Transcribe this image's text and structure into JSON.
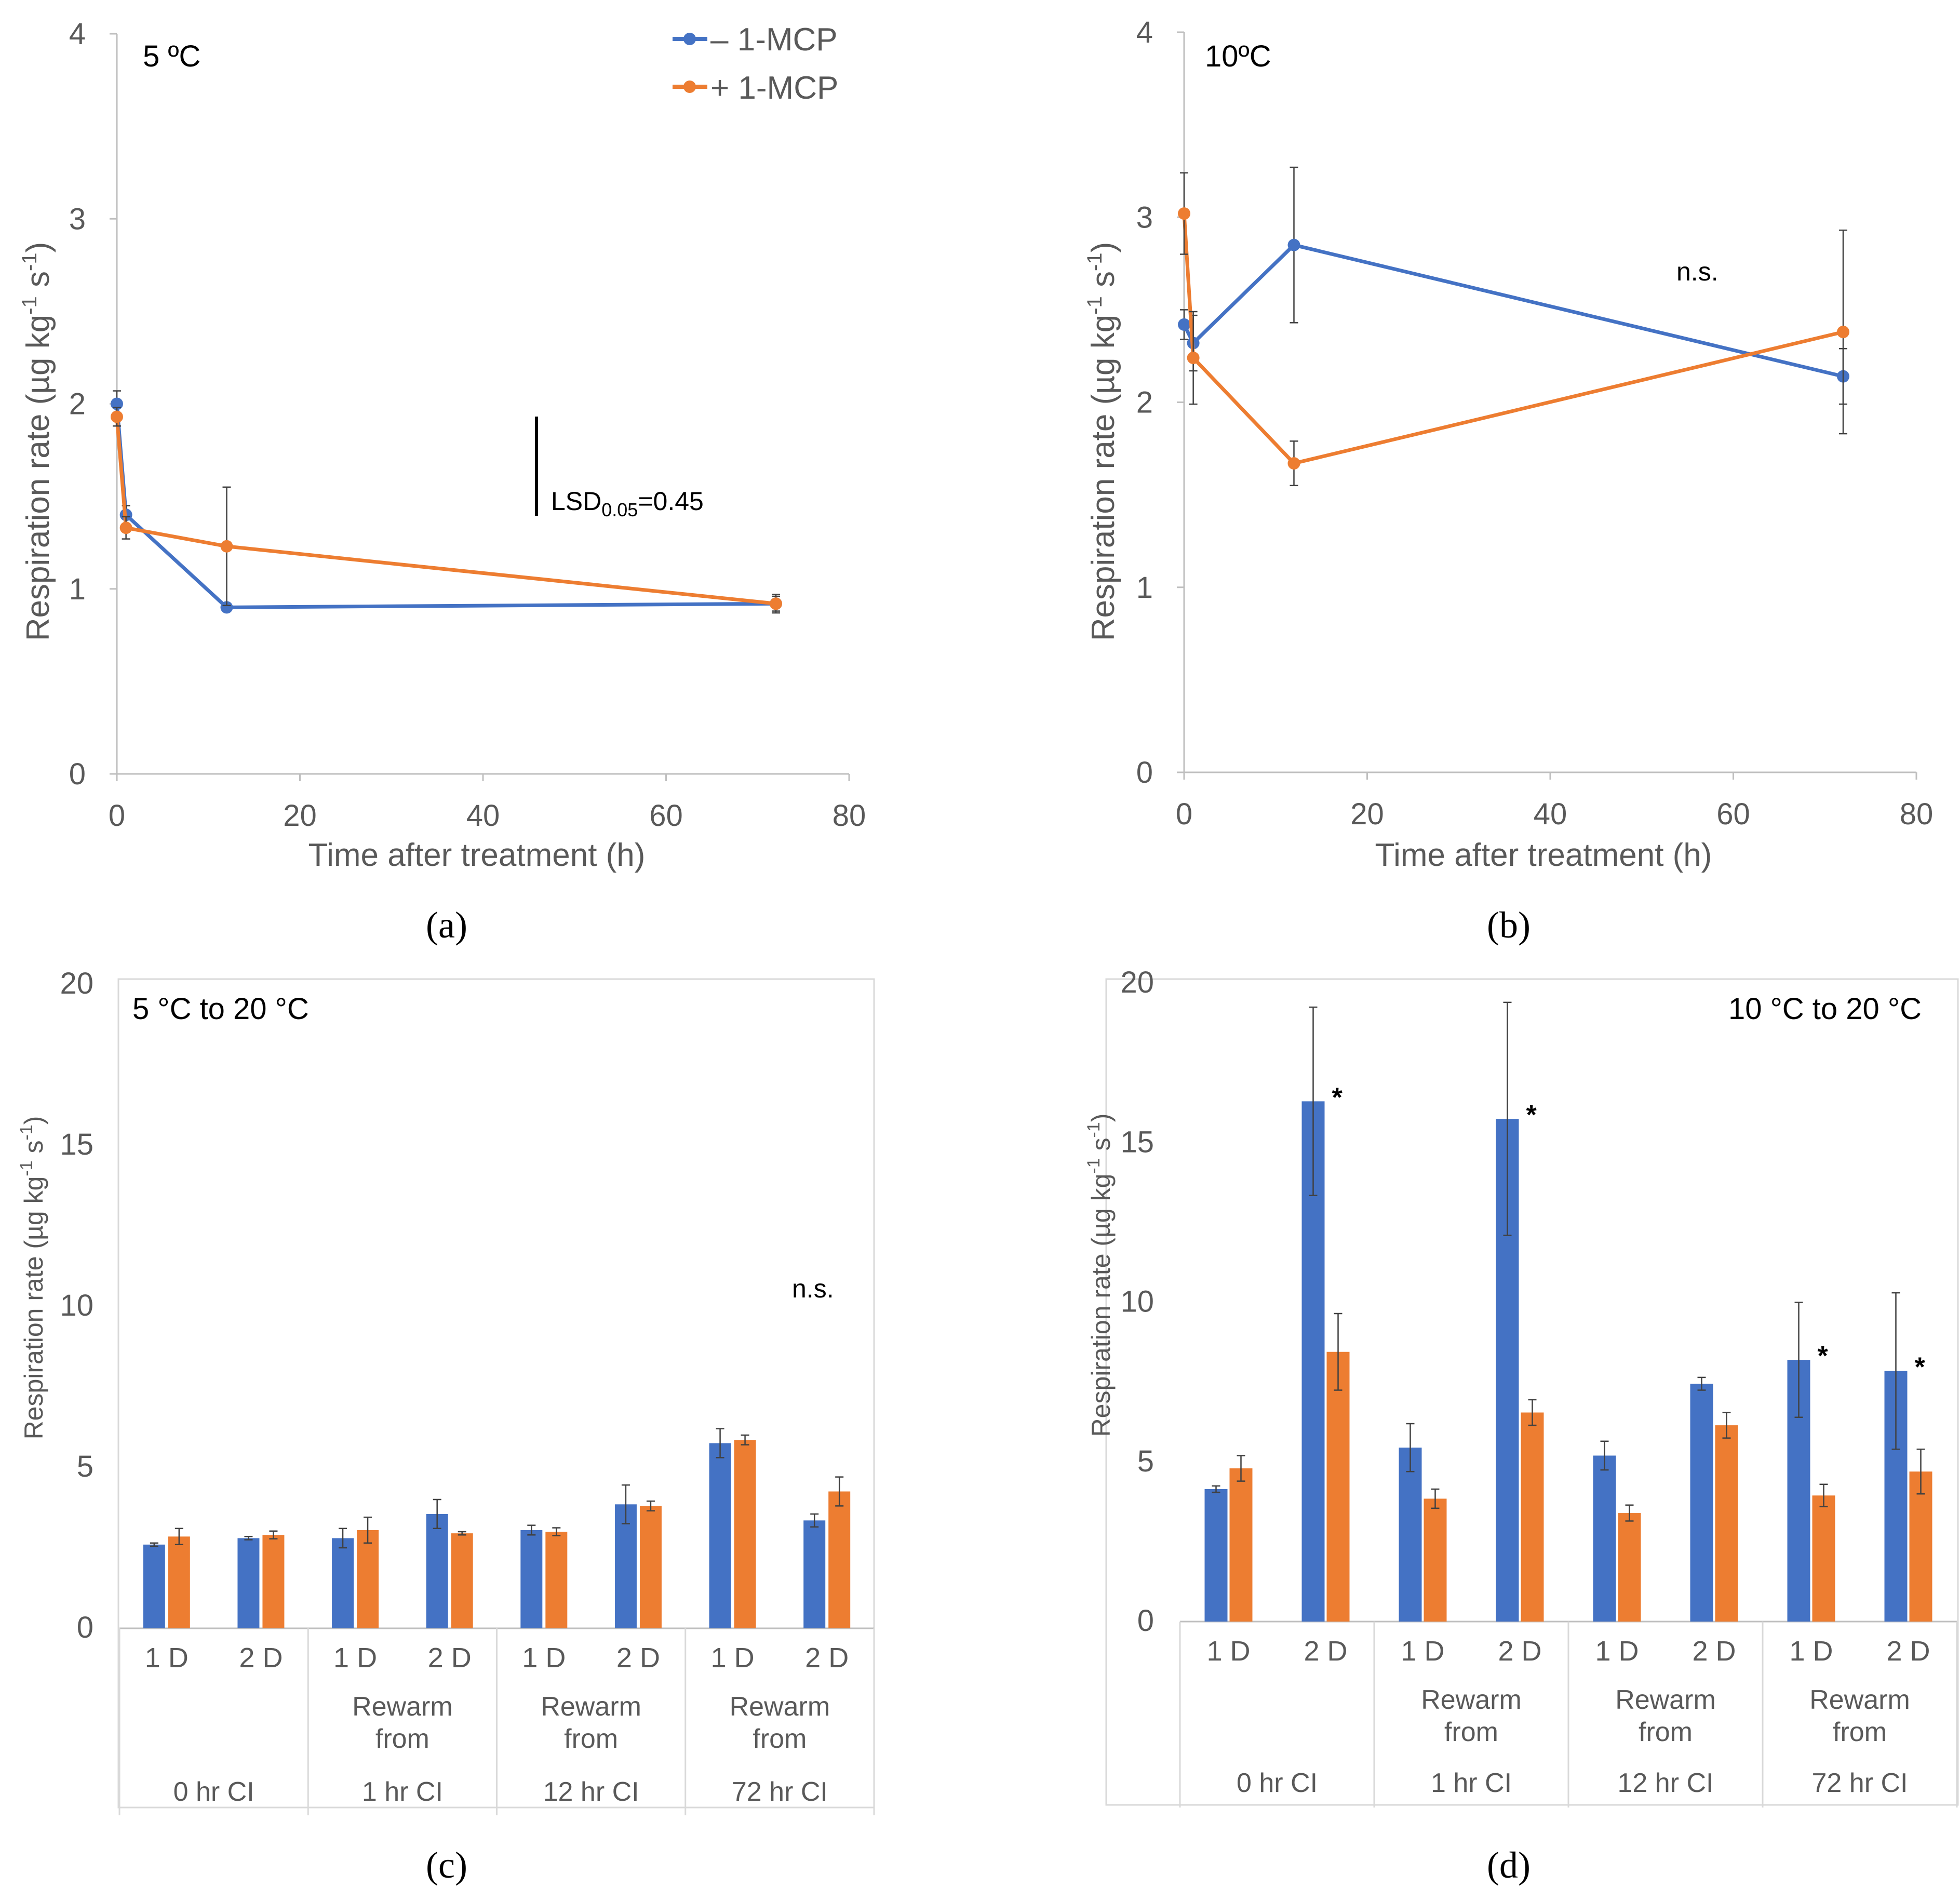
{
  "colors": {
    "minus": "#4472C4",
    "plus": "#ED7D31",
    "axis": "#BFBFBF",
    "text": "#595959",
    "err": "#404040"
  },
  "legend": {
    "minus_label": "– 1-MCP",
    "plus_label": "+ 1-MCP"
  },
  "sublabels": {
    "a": "(a)",
    "b": "(b)",
    "c": "(c)",
    "d": "(d)"
  },
  "chart_data": [
    {
      "id": "a",
      "type": "line",
      "title": "5 ºC",
      "xlabel": "Time after treatment (h)",
      "ylabel": "Respiration rate (µg kg-1 s-1)",
      "ylabel_main": "Respiration rate (µg kg",
      "ylabel_mid": " s",
      "ylabel_end": ")",
      "xlim": [
        0,
        80
      ],
      "ylim": [
        0,
        4
      ],
      "xticks": [
        0,
        20,
        40,
        60,
        80
      ],
      "yticks": [
        0,
        1,
        2,
        3,
        4
      ],
      "annotation": "LSD0.05=0.45",
      "lsd": {
        "label_pre": "LSD",
        "label_sub": "0.05",
        "label_post": "=0.45",
        "x": 46,
        "y0": 1.4,
        "y1": 1.85
      },
      "series": [
        {
          "name": "– 1-MCP",
          "color": "#4472C4",
          "x": [
            0,
            1,
            12,
            72
          ],
          "y": [
            2.0,
            1.4,
            0.9,
            0.92
          ],
          "err": [
            0.07,
            0.05,
            0.0,
            0.05
          ]
        },
        {
          "name": "+ 1-MCP",
          "color": "#ED7D31",
          "x": [
            0,
            1,
            12,
            72
          ],
          "y": [
            1.93,
            1.33,
            1.23,
            0.92
          ],
          "err": [
            0.05,
            0.06,
            0.32,
            0.04
          ]
        }
      ]
    },
    {
      "id": "b",
      "type": "line",
      "title": "10ºC",
      "xlabel": "Time after treatment (h)",
      "ylabel": "Respiration rate (µg kg-1 s-1)",
      "ylabel_main": "Respiration rate (µg kg",
      "ylabel_mid": " s",
      "ylabel_end": ")",
      "xlim": [
        0,
        80
      ],
      "ylim": [
        0,
        4
      ],
      "xticks": [
        0,
        20,
        40,
        60,
        80
      ],
      "yticks": [
        0,
        1,
        2,
        3,
        4
      ],
      "annotation": "n.s.",
      "series": [
        {
          "name": "– 1-MCP",
          "color": "#4472C4",
          "x": [
            0,
            1,
            12,
            72
          ],
          "y": [
            2.42,
            2.32,
            2.85,
            2.14
          ],
          "err": [
            0.08,
            0.15,
            0.42,
            0.15
          ]
        },
        {
          "name": "+ 1-MCP",
          "color": "#ED7D31",
          "x": [
            0,
            1,
            12,
            72
          ],
          "y": [
            3.02,
            2.24,
            1.67,
            2.38
          ],
          "err": [
            0.22,
            0.25,
            0.12,
            0.55
          ]
        }
      ]
    },
    {
      "id": "c",
      "type": "bar",
      "title": "5 °C to 20 °C",
      "ylabel": "Respiration rate (µg kg-1 s-1)",
      "ylabel_main": "Respiration rate (µg kg",
      "ylabel_mid": " s",
      "ylabel_end": ")",
      "ylim": [
        0,
        20
      ],
      "yticks": [
        0,
        5,
        10,
        15,
        20
      ],
      "annotation": "n.s.",
      "categories": [
        "1 D",
        "2 D",
        "1 D",
        "2 D",
        "1 D",
        "2 D",
        "1 D",
        "2 D"
      ],
      "groups": [
        {
          "lines": [
            "0 hr CI"
          ]
        },
        {
          "lines": [
            "Rewarm",
            "from",
            "1 hr CI"
          ]
        },
        {
          "lines": [
            "Rewarm",
            "from",
            "12 hr CI"
          ]
        },
        {
          "lines": [
            "Rewarm",
            "from",
            "72 hr CI"
          ]
        }
      ],
      "series": [
        {
          "name": "– 1-MCP",
          "color": "#4472C4",
          "values": [
            2.6,
            2.8,
            2.8,
            3.55,
            3.05,
            3.85,
            5.75,
            3.35
          ],
          "err": [
            0.05,
            0.05,
            0.3,
            0.45,
            0.15,
            0.6,
            0.45,
            0.2
          ],
          "stars": [
            false,
            false,
            false,
            false,
            false,
            false,
            false,
            false
          ]
        },
        {
          "name": "+ 1-MCP",
          "color": "#ED7D31",
          "values": [
            2.85,
            2.9,
            3.05,
            2.95,
            3.0,
            3.8,
            5.85,
            4.25
          ],
          "err": [
            0.25,
            0.12,
            0.4,
            0.05,
            0.12,
            0.15,
            0.15,
            0.45
          ],
          "stars": [
            false,
            false,
            false,
            false,
            false,
            false,
            false,
            false
          ]
        }
      ]
    },
    {
      "id": "d",
      "type": "bar",
      "title": "10 °C to 20 °C",
      "ylabel": "Respiration rate (µg kg-1 s-1)",
      "ylabel_main": "Respiration rate (µg kg",
      "ylabel_mid": " s",
      "ylabel_end": ")",
      "ylim": [
        0,
        20
      ],
      "yticks": [
        0,
        5,
        10,
        15,
        20
      ],
      "categories": [
        "1 D",
        "2 D",
        "1 D",
        "2 D",
        "1 D",
        "2 D",
        "1 D",
        "2 D"
      ],
      "groups": [
        {
          "lines": [
            "0 hr CI"
          ]
        },
        {
          "lines": [
            "Rewarm",
            "from",
            "1 hr CI"
          ]
        },
        {
          "lines": [
            "Rewarm",
            "from",
            "12 hr CI"
          ]
        },
        {
          "lines": [
            "Rewarm",
            "from",
            "72 hr CI"
          ]
        }
      ],
      "series": [
        {
          "name": "– 1-MCP",
          "color": "#4472C4",
          "values": [
            4.15,
            16.3,
            5.45,
            15.75,
            5.2,
            7.45,
            8.2,
            7.85
          ],
          "err": [
            0.1,
            2.95,
            0.75,
            3.65,
            0.45,
            0.2,
            1.8,
            2.45
          ],
          "stars": [
            false,
            true,
            false,
            true,
            false,
            false,
            true,
            true
          ]
        },
        {
          "name": "+ 1-MCP",
          "color": "#ED7D31",
          "values": [
            4.8,
            8.45,
            3.85,
            6.55,
            3.4,
            6.15,
            3.95,
            4.7
          ],
          "err": [
            0.4,
            1.2,
            0.3,
            0.4,
            0.25,
            0.4,
            0.35,
            0.7
          ],
          "stars": [
            false,
            false,
            false,
            false,
            false,
            false,
            false,
            false
          ]
        }
      ]
    }
  ]
}
